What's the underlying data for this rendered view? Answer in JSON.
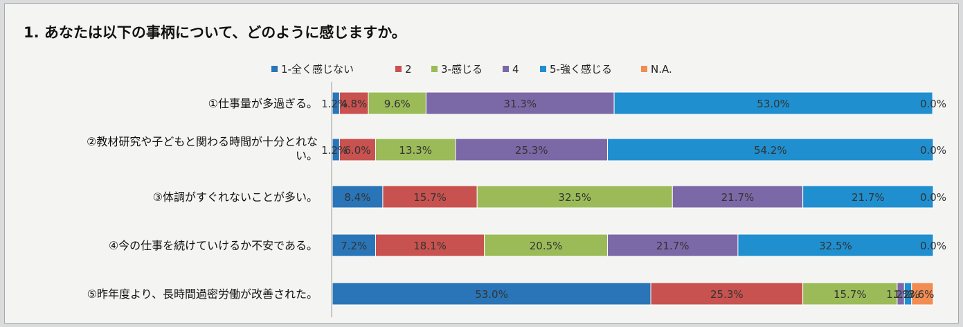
{
  "chart_data": {
    "type": "bar",
    "orientation": "horizontal",
    "stacked": true,
    "title": "1. あなたは以下の事柄について、どのように感じますか。",
    "legend_position": "top",
    "xlim": [
      0,
      100
    ],
    "grid": false,
    "categories": [
      [
        "①仕事量が多過ぎる。"
      ],
      [
        "②教材研究や子どもと関わる時間が十分とれな",
        "い。"
      ],
      [
        "③体調がすぐれないことが多い。"
      ],
      [
        "④今の仕事を続けていけるか不安である。"
      ],
      [
        "⑤昨年度より、長時間過密労働が改善された。"
      ]
    ],
    "series": [
      {
        "name": "1-全く感じない",
        "color": "#2a75b7",
        "values": [
          1.2,
          1.2,
          8.4,
          7.2,
          53.0
        ],
        "labels": [
          "1.2%",
          "1.2%",
          "8.4%",
          "7.2%",
          "53.0%"
        ]
      },
      {
        "name": "2",
        "color": "#c8524f",
        "values": [
          4.8,
          6.0,
          15.7,
          18.1,
          25.3
        ],
        "labels": [
          "4.8%",
          "6.0%",
          "15.7%",
          "18.1%",
          "25.3%"
        ]
      },
      {
        "name": "3-感じる",
        "color": "#9bbb59",
        "values": [
          9.6,
          13.3,
          32.5,
          20.5,
          15.7
        ],
        "labels": [
          "9.6%",
          "13.3%",
          "32.5%",
          "20.5%",
          "15.7%"
        ]
      },
      {
        "name": "4",
        "color": "#7b68a6",
        "values": [
          31.3,
          25.3,
          21.7,
          21.7,
          1.2
        ],
        "labels": [
          "31.3%",
          "25.3%",
          "21.7%",
          "21.7%",
          "1.2%"
        ]
      },
      {
        "name": "5-強く感じる",
        "color": "#1f8fcf",
        "values": [
          53.0,
          54.2,
          21.7,
          32.5,
          1.2
        ],
        "labels": [
          "53.0%",
          "54.2%",
          "21.7%",
          "32.5%",
          "1.2%"
        ]
      },
      {
        "name": "N.A.",
        "color": "#f28c52",
        "values": [
          0.0,
          0.0,
          0.0,
          0.0,
          3.6
        ],
        "labels": [
          "0.0%",
          "0.0%",
          "0.0%",
          "0.0%",
          "3.6%"
        ]
      }
    ]
  }
}
